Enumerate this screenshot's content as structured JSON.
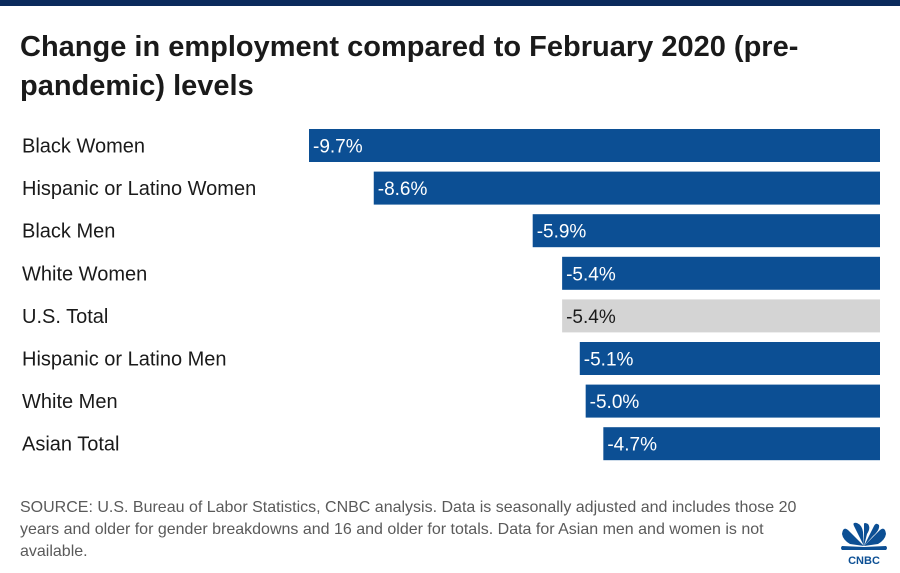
{
  "title": "Change in employment compared to February 2020 (pre-pandemic) levels",
  "source": "SOURCE: U.S. Bureau of Labor Statistics, CNBC analysis. Data is seasonally adjusted and includes those 20 years and older for gender breakdowns and 16 and older for totals. Data for Asian men and women is not available.",
  "logo": {
    "text": "CNBC"
  },
  "colors": {
    "bar": "#0c4f94",
    "highlight": "#d4d4d4",
    "bar_text": "#ffffff",
    "highlight_text": "#1a1a1a",
    "top_bar": "#0b2a5c"
  },
  "chart_data": {
    "type": "bar",
    "orientation": "horizontal",
    "categories": [
      "Black Women",
      "Hispanic or Latino Women",
      "Black Men",
      "White Women",
      "U.S. Total",
      "Hispanic or Latino Men",
      "White Men",
      "Asian Total"
    ],
    "values": [
      -9.7,
      -8.6,
      -5.9,
      -5.4,
      -5.4,
      -5.1,
      -5.0,
      -4.7
    ],
    "value_labels": [
      "-9.7%",
      "-8.6%",
      "-5.9%",
      "-5.4%",
      "-5.4%",
      "-5.1%",
      "-5.0%",
      "-4.7%"
    ],
    "highlight": "U.S. Total",
    "xlim": [
      -9.7,
      0
    ],
    "grid": false,
    "legend": "none"
  }
}
